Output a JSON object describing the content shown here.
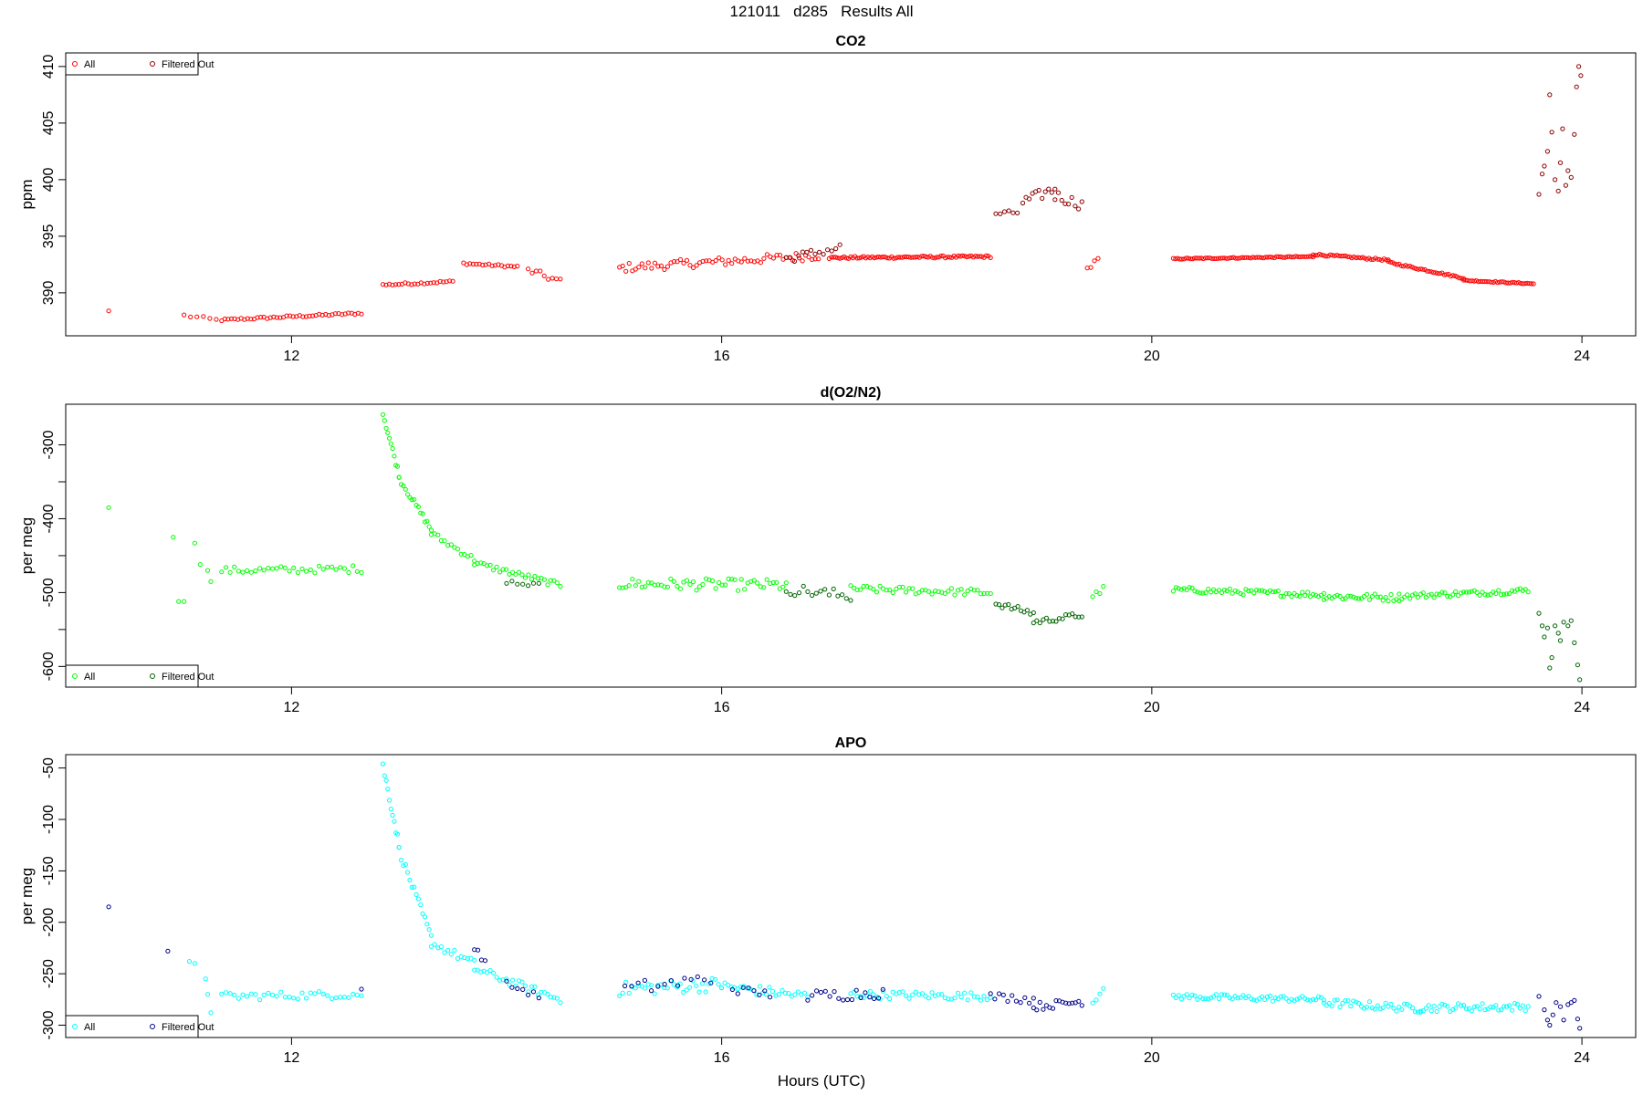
{
  "title": "121011   d285   Results All",
  "xlabel": "Hours (UTC)",
  "chart_data": [
    {
      "type": "scatter",
      "title": "CO2",
      "ylabel": "ppm",
      "xlim": [
        9.9,
        24.5
      ],
      "ylim": [
        386.2,
        411.2
      ],
      "xticks": [
        12,
        16,
        20,
        24
      ],
      "yticks": [
        390,
        395,
        400,
        405,
        410
      ],
      "legend_position": "top-left",
      "colors": {
        "all": "#ff0000",
        "filtered": "#8b0000"
      },
      "legend": [
        "All",
        "Filtered Out"
      ],
      "series": [
        {
          "name": "All",
          "segments": [
            {
              "x_start": 11.0,
              "x_end": 11.3,
              "y_start": 388.0,
              "y_end": 387.6,
              "step": 0.06,
              "noise": 0.15
            },
            {
              "x_start": 11.35,
              "x_end": 12.65,
              "y_start": 387.6,
              "y_end": 388.2,
              "step": 0.03,
              "noise": 0.1
            },
            {
              "x_start": 12.85,
              "x_end": 13.5,
              "y_start": 390.7,
              "y_end": 391.0,
              "step": 0.03,
              "noise": 0.1
            },
            {
              "x_start": 13.6,
              "x_end": 14.1,
              "y_start": 392.6,
              "y_end": 392.3,
              "step": 0.03,
              "noise": 0.1
            },
            {
              "x_start": 14.2,
              "x_end": 14.5,
              "y_start": 392.0,
              "y_end": 391.0,
              "step": 0.04,
              "noise": 0.3
            },
            {
              "x_start": 15.05,
              "x_end": 16.9,
              "y_start": 392.2,
              "y_end": 393.3,
              "step": 0.03,
              "noise": 0.4
            },
            {
              "x_start": 17.0,
              "x_end": 18.5,
              "y_start": 393.1,
              "y_end": 393.2,
              "step": 0.02,
              "noise": 0.1
            },
            {
              "x_start": 19.4,
              "x_end": 19.5,
              "y_start": 392.1,
              "y_end": 392.9,
              "step": 0.03,
              "noise": 0.3
            },
            {
              "x_start": 20.2,
              "x_end": 21.5,
              "y_start": 393.0,
              "y_end": 393.2,
              "step": 0.02,
              "noise": 0.05
            },
            {
              "x_start": 21.5,
              "x_end": 22.2,
              "y_start": 393.4,
              "y_end": 392.9,
              "step": 0.02,
              "noise": 0.08
            },
            {
              "x_start": 22.2,
              "x_end": 22.9,
              "y_start": 392.7,
              "y_end": 391.3,
              "step": 0.02,
              "noise": 0.08
            },
            {
              "x_start": 22.9,
              "x_end": 23.55,
              "y_start": 391.1,
              "y_end": 390.8,
              "step": 0.02,
              "noise": 0.05
            }
          ],
          "points": [
            {
              "x": 10.3,
              "y": 388.4
            }
          ]
        },
        {
          "name": "Filtered Out",
          "segments": [
            {
              "x_start": 16.6,
              "x_end": 17.1,
              "y_start": 393.0,
              "y_end": 394.0,
              "step": 0.04,
              "noise": 0.4
            },
            {
              "x_start": 18.55,
              "x_end": 18.75,
              "y_start": 397.0,
              "y_end": 397.1,
              "step": 0.04,
              "noise": 0.2
            },
            {
              "x_start": 18.8,
              "x_end": 19.1,
              "y_start": 398.0,
              "y_end": 399.2,
              "step": 0.03,
              "noise": 0.5
            },
            {
              "x_start": 19.1,
              "x_end": 19.35,
              "y_start": 398.6,
              "y_end": 397.8,
              "step": 0.03,
              "noise": 0.5
            }
          ],
          "points": [
            {
              "x": 23.6,
              "y": 398.7
            },
            {
              "x": 23.63,
              "y": 400.5
            },
            {
              "x": 23.65,
              "y": 401.2
            },
            {
              "x": 23.68,
              "y": 402.5
            },
            {
              "x": 23.7,
              "y": 407.5
            },
            {
              "x": 23.72,
              "y": 404.2
            },
            {
              "x": 23.75,
              "y": 400.0
            },
            {
              "x": 23.78,
              "y": 399.0
            },
            {
              "x": 23.8,
              "y": 401.5
            },
            {
              "x": 23.82,
              "y": 404.5
            },
            {
              "x": 23.85,
              "y": 399.5
            },
            {
              "x": 23.87,
              "y": 400.8
            },
            {
              "x": 23.9,
              "y": 400.2
            },
            {
              "x": 23.93,
              "y": 404.0
            },
            {
              "x": 23.95,
              "y": 408.2
            },
            {
              "x": 23.97,
              "y": 410.0
            },
            {
              "x": 23.99,
              "y": 409.2
            }
          ]
        }
      ]
    },
    {
      "type": "scatter",
      "title": "d(O2/N2)",
      "ylabel": "per meg",
      "xlim": [
        9.9,
        24.5
      ],
      "ylim": [
        -628,
        -245
      ],
      "xticks": [
        12,
        16,
        20,
        24
      ],
      "yticks": [
        -300,
        -400,
        -500,
        -600
      ],
      "minor_yticks": [
        -350,
        -450,
        -550
      ],
      "legend_position": "bottom-left",
      "colors": {
        "all": "#00ff00",
        "filtered": "#006400"
      },
      "legend": [
        "All",
        "Filtered Out"
      ],
      "series": [
        {
          "name": "All",
          "segments": [
            {
              "x_start": 11.35,
              "x_end": 12.65,
              "y_start": -470,
              "y_end": -468,
              "step": 0.04,
              "noise": 5
            },
            {
              "x_start": 12.85,
              "x_end": 13.0,
              "y_start": -258,
              "y_end": -340,
              "step": 0.015,
              "noise": 4
            },
            {
              "x_start": 13.0,
              "x_end": 13.3,
              "y_start": -345,
              "y_end": -415,
              "step": 0.02,
              "noise": 4
            },
            {
              "x_start": 13.3,
              "x_end": 13.7,
              "y_start": -420,
              "y_end": -455,
              "step": 0.03,
              "noise": 4
            },
            {
              "x_start": 13.7,
              "x_end": 14.5,
              "y_start": -460,
              "y_end": -490,
              "step": 0.03,
              "noise": 4
            },
            {
              "x_start": 15.05,
              "x_end": 16.6,
              "y_start": -488,
              "y_end": -490,
              "step": 0.03,
              "noise": 8
            },
            {
              "x_start": 17.2,
              "x_end": 18.5,
              "y_start": -495,
              "y_end": -500,
              "step": 0.03,
              "noise": 5
            },
            {
              "x_start": 19.45,
              "x_end": 19.55,
              "y_start": -505,
              "y_end": -495,
              "step": 0.03,
              "noise": 4
            },
            {
              "x_start": 20.2,
              "x_end": 21.6,
              "y_start": -496,
              "y_end": -503,
              "step": 0.025,
              "noise": 4
            },
            {
              "x_start": 21.6,
              "x_end": 22.3,
              "y_start": -505,
              "y_end": -507,
              "step": 0.025,
              "noise": 5
            },
            {
              "x_start": 22.3,
              "x_end": 23.5,
              "y_start": -505,
              "y_end": -497,
              "step": 0.025,
              "noise": 4
            }
          ],
          "points": [
            {
              "x": 10.3,
              "y": -385
            },
            {
              "x": 10.9,
              "y": -425
            },
            {
              "x": 10.95,
              "y": -512
            },
            {
              "x": 11.0,
              "y": -512
            },
            {
              "x": 11.1,
              "y": -433
            },
            {
              "x": 11.15,
              "y": -462
            },
            {
              "x": 11.22,
              "y": -470
            },
            {
              "x": 11.25,
              "y": -485
            }
          ]
        },
        {
          "name": "Filtered Out",
          "segments": [
            {
              "x_start": 14.0,
              "x_end": 14.3,
              "y_start": -485,
              "y_end": -490,
              "step": 0.05,
              "noise": 3
            },
            {
              "x_start": 16.6,
              "x_end": 17.2,
              "y_start": -495,
              "y_end": -505,
              "step": 0.04,
              "noise": 8
            },
            {
              "x_start": 18.55,
              "x_end": 18.9,
              "y_start": -515,
              "y_end": -528,
              "step": 0.03,
              "noise": 4
            },
            {
              "x_start": 18.9,
              "x_end": 19.35,
              "y_start": -540,
              "y_end": -530,
              "step": 0.03,
              "noise": 4
            }
          ],
          "points": [
            {
              "x": 23.6,
              "y": -528
            },
            {
              "x": 23.63,
              "y": -545
            },
            {
              "x": 23.65,
              "y": -560
            },
            {
              "x": 23.68,
              "y": -548
            },
            {
              "x": 23.7,
              "y": -602
            },
            {
              "x": 23.72,
              "y": -588
            },
            {
              "x": 23.75,
              "y": -545
            },
            {
              "x": 23.78,
              "y": -555
            },
            {
              "x": 23.8,
              "y": -565
            },
            {
              "x": 23.83,
              "y": -540
            },
            {
              "x": 23.87,
              "y": -545
            },
            {
              "x": 23.9,
              "y": -538
            },
            {
              "x": 23.93,
              "y": -568
            },
            {
              "x": 23.96,
              "y": -598
            },
            {
              "x": 23.98,
              "y": -618
            }
          ]
        }
      ]
    },
    {
      "type": "scatter",
      "title": "APO",
      "ylabel": "per meg",
      "xlim": [
        9.9,
        24.5
      ],
      "ylim": [
        -312,
        -37
      ],
      "xticks": [
        12,
        16,
        20,
        24
      ],
      "yticks": [
        -50,
        -100,
        -150,
        -200,
        -250,
        -300
      ],
      "legend_position": "bottom-left",
      "colors": {
        "all": "#00ffff",
        "filtered": "#00008b"
      },
      "legend": [
        "All",
        "Filtered Out"
      ],
      "series": [
        {
          "name": "All",
          "segments": [
            {
              "x_start": 11.35,
              "x_end": 12.65,
              "y_start": -272,
              "y_end": -270,
              "step": 0.04,
              "noise": 4
            },
            {
              "x_start": 12.85,
              "x_end": 13.0,
              "y_start": -48,
              "y_end": -125,
              "step": 0.015,
              "noise": 4
            },
            {
              "x_start": 13.0,
              "x_end": 13.3,
              "y_start": -130,
              "y_end": -215,
              "step": 0.02,
              "noise": 4
            },
            {
              "x_start": 13.3,
              "x_end": 13.7,
              "y_start": -220,
              "y_end": -240,
              "step": 0.03,
              "noise": 4
            },
            {
              "x_start": 13.7,
              "x_end": 14.5,
              "y_start": -245,
              "y_end": -275,
              "step": 0.03,
              "noise": 4
            },
            {
              "x_start": 15.05,
              "x_end": 16.0,
              "y_start": -265,
              "y_end": -260,
              "step": 0.03,
              "noise": 7
            },
            {
              "x_start": 16.0,
              "x_end": 16.8,
              "y_start": -262,
              "y_end": -272,
              "step": 0.03,
              "noise": 5
            },
            {
              "x_start": 17.2,
              "x_end": 18.5,
              "y_start": -270,
              "y_end": -272,
              "step": 0.03,
              "noise": 4
            },
            {
              "x_start": 19.45,
              "x_end": 19.55,
              "y_start": -275,
              "y_end": -268,
              "step": 0.03,
              "noise": 4
            },
            {
              "x_start": 20.2,
              "x_end": 21.6,
              "y_start": -272,
              "y_end": -275,
              "step": 0.025,
              "noise": 3
            },
            {
              "x_start": 21.6,
              "x_end": 22.5,
              "y_start": -278,
              "y_end": -284,
              "step": 0.025,
              "noise": 4
            },
            {
              "x_start": 22.5,
              "x_end": 23.5,
              "y_start": -283,
              "y_end": -282,
              "step": 0.025,
              "noise": 4
            }
          ],
          "points": [
            {
              "x": 11.05,
              "y": -238
            },
            {
              "x": 11.1,
              "y": -240
            },
            {
              "x": 11.2,
              "y": -255
            },
            {
              "x": 11.22,
              "y": -270
            },
            {
              "x": 11.25,
              "y": -288
            }
          ]
        },
        {
          "name": "Filtered Out",
          "segments": [
            {
              "x_start": 13.7,
              "x_end": 13.8,
              "y_start": -225,
              "y_end": -238,
              "step": 0.03,
              "noise": 3
            },
            {
              "x_start": 14.0,
              "x_end": 14.3,
              "y_start": -260,
              "y_end": -272,
              "step": 0.05,
              "noise": 3
            },
            {
              "x_start": 15.1,
              "x_end": 15.9,
              "y_start": -265,
              "y_end": -255,
              "step": 0.06,
              "noise": 7
            },
            {
              "x_start": 16.1,
              "x_end": 16.45,
              "y_start": -265,
              "y_end": -270,
              "step": 0.05,
              "noise": 4
            },
            {
              "x_start": 16.8,
              "x_end": 17.5,
              "y_start": -272,
              "y_end": -268,
              "step": 0.04,
              "noise": 6
            },
            {
              "x_start": 18.5,
              "x_end": 18.9,
              "y_start": -272,
              "y_end": -275,
              "step": 0.04,
              "noise": 4
            },
            {
              "x_start": 18.9,
              "x_end": 19.35,
              "y_start": -282,
              "y_end": -277,
              "step": 0.03,
              "noise": 4
            }
          ],
          "points": [
            {
              "x": 10.3,
              "y": -185
            },
            {
              "x": 10.85,
              "y": -228
            },
            {
              "x": 12.65,
              "y": -265
            },
            {
              "x": 23.6,
              "y": -272
            },
            {
              "x": 23.65,
              "y": -285
            },
            {
              "x": 23.68,
              "y": -295
            },
            {
              "x": 23.7,
              "y": -300
            },
            {
              "x": 23.73,
              "y": -290
            },
            {
              "x": 23.76,
              "y": -278
            },
            {
              "x": 23.8,
              "y": -282
            },
            {
              "x": 23.83,
              "y": -295
            },
            {
              "x": 23.87,
              "y": -280
            },
            {
              "x": 23.9,
              "y": -278
            },
            {
              "x": 23.93,
              "y": -276
            },
            {
              "x": 23.96,
              "y": -294
            },
            {
              "x": 23.98,
              "y": -303
            }
          ]
        }
      ]
    }
  ]
}
